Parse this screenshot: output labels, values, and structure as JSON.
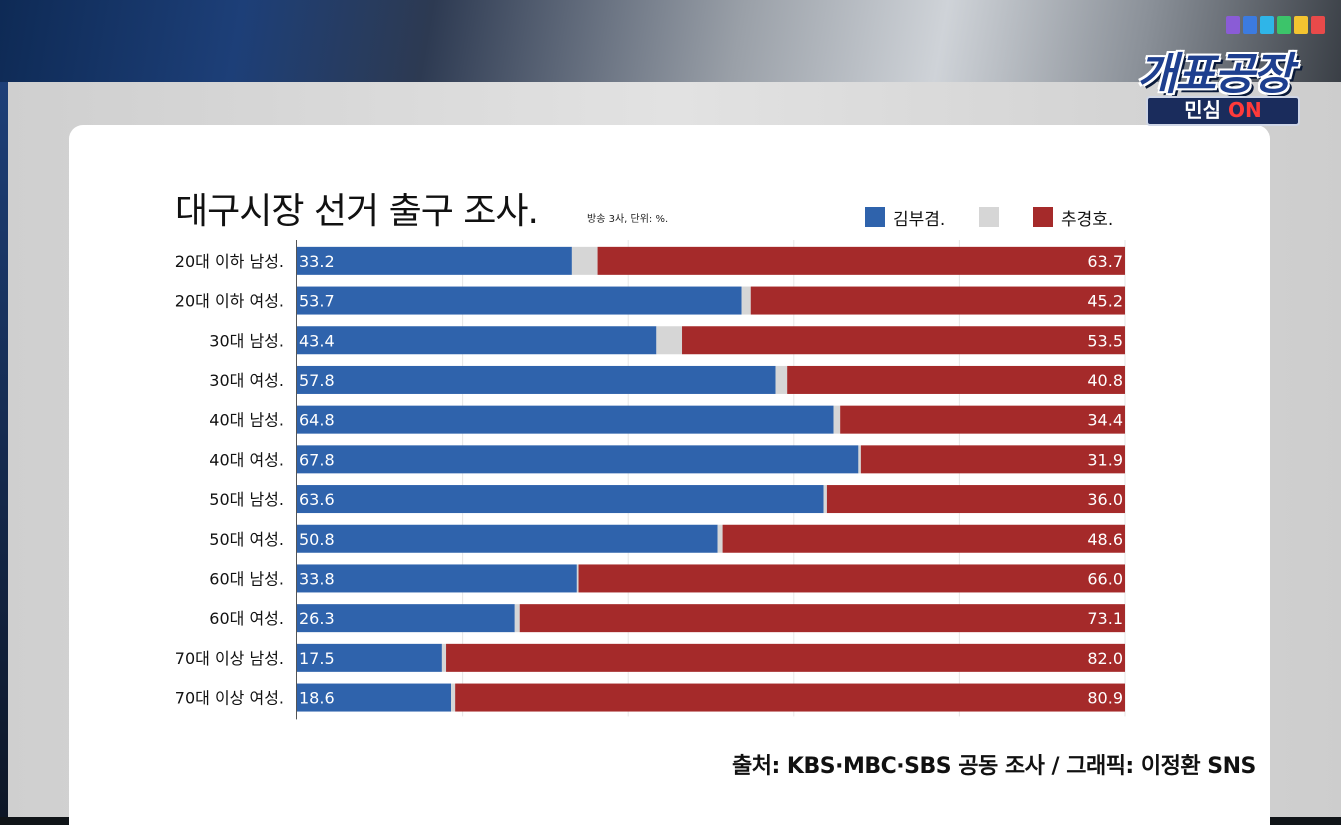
{
  "branding": {
    "logo_main": "개표공장",
    "logo_sub_prefix": "민심",
    "logo_sub_on": "ON"
  },
  "colors": {
    "kim": "#2f63ac",
    "gap": "#d6d6d6",
    "choo": "#a52a2a",
    "text": "#111111",
    "grid": "#e6e6e6"
  },
  "chart_data": {
    "type": "bar",
    "orientation": "horizontal-stacked-100",
    "title": "대구시장 선거 출구 조사.",
    "subtitle": "방송 3사, 단위: %.",
    "xlim": [
      0,
      100
    ],
    "grid": true,
    "legend_position": "top-right",
    "categories": [
      "20대 이하 남성.",
      "20대 이하 여성.",
      "30대 남성.",
      "30대 여성.",
      "40대 남성.",
      "40대 여성.",
      "50대 남성.",
      "50대 여성.",
      "60대 남성.",
      "60대 여성.",
      "70대 이상 남성.",
      "70대 이상 여성."
    ],
    "series": [
      {
        "name": "김부겸.",
        "values": [
          33.2,
          53.7,
          43.4,
          57.8,
          64.8,
          67.8,
          63.6,
          50.8,
          33.8,
          26.3,
          17.5,
          18.6
        ]
      },
      {
        "name": "",
        "values": [
          3.1,
          1.1,
          3.1,
          1.4,
          0.8,
          0.3,
          0.4,
          0.6,
          0.2,
          0.6,
          0.5,
          0.5
        ]
      },
      {
        "name": "추경호.",
        "values": [
          63.7,
          45.2,
          53.5,
          40.8,
          34.4,
          31.9,
          36.0,
          48.6,
          66.0,
          73.1,
          82.0,
          80.9
        ]
      }
    ]
  },
  "source": "출처: KBS·MBC·SBS  공동 조사 / 그래픽: 이정환 SNS"
}
